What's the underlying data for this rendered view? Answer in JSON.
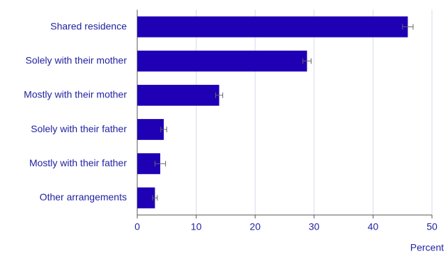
{
  "chart_data": {
    "type": "hbar",
    "x_label": "Percent",
    "categories": [
      "Shared residence",
      "Solely with their mother",
      "Mostly with their mother",
      "Solely with their father",
      "Mostly with their father",
      "Other arrangements"
    ],
    "values": [
      45.9,
      28.8,
      13.9,
      4.5,
      3.9,
      3.0
    ],
    "errors": [
      0.9,
      0.7,
      0.6,
      0.5,
      0.9,
      0.4
    ],
    "color": "#1f00b4",
    "xlim": [
      0,
      50
    ],
    "xticks": [
      0,
      10,
      20,
      30,
      40,
      50
    ],
    "grid": true
  }
}
